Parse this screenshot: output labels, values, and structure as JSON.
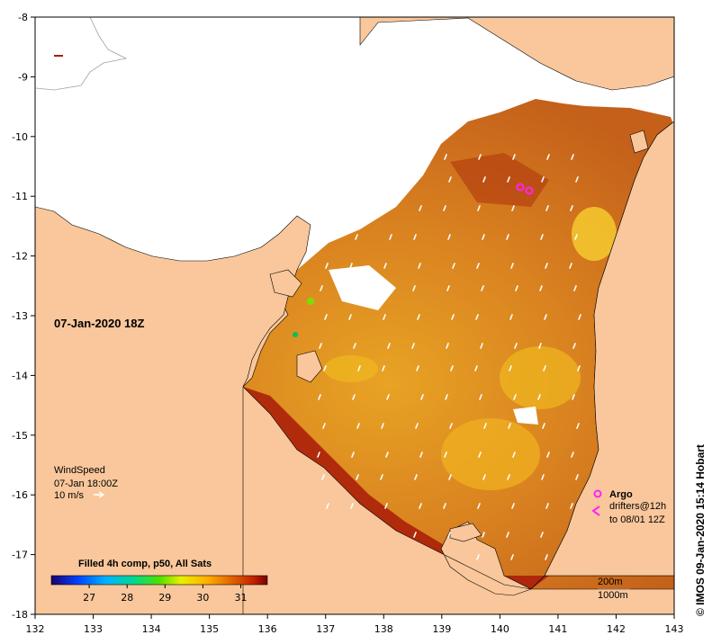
{
  "map": {
    "date_label": "07-Jan-2020 18Z",
    "lon_ticks": [
      "132",
      "133",
      "134",
      "135",
      "136",
      "137",
      "138",
      "139",
      "140",
      "141",
      "142",
      "143"
    ],
    "lat_ticks": [
      "-8",
      "-9",
      "-10",
      "-11",
      "-12",
      "-13",
      "-14",
      "-15",
      "-16",
      "-17",
      "-18"
    ],
    "wind": {
      "title": "WindSpeed",
      "time": "07-Jan 18:00Z",
      "scale": "10 m/s"
    },
    "legend": {
      "argo": "Argo",
      "drifters": "drifters@12h",
      "drifters_to": "to 08/01 12Z"
    },
    "bathymetry": {
      "contour_200": "200m",
      "contour_1000": "1000m"
    },
    "colorbar": {
      "title": "Filled 4h comp, p50, All Sats",
      "ticks": [
        "27",
        "28",
        "29",
        "30",
        "31"
      ],
      "min": 26.0,
      "max": 31.7
    },
    "credit": "© IMOS 09-Jan-2020 15:14 Hobart",
    "colors": {
      "land": "#f9c79b",
      "cloud": "#ffffff",
      "sst_warm": "#d2751c",
      "sst_hot": "#9a1406",
      "argo": "#ff22ff"
    }
  }
}
